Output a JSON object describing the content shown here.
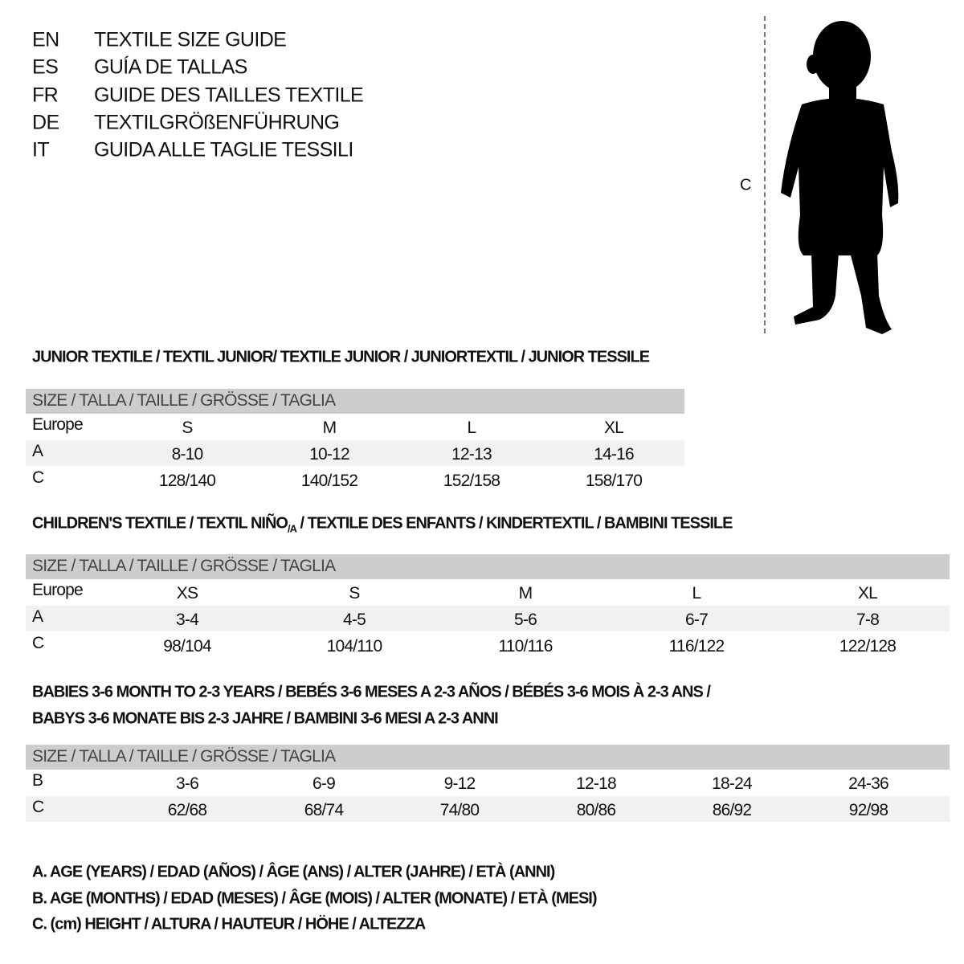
{
  "languages": [
    {
      "code": "EN",
      "title": "TEXTILE SIZE GUIDE"
    },
    {
      "code": "ES",
      "title": "GUÍA DE TALLAS"
    },
    {
      "code": "FR",
      "title": "GUIDE DES TAILLES TEXTILE"
    },
    {
      "code": "DE",
      "title": "TEXTILGRÖßENFÜHRUNG"
    },
    {
      "code": "IT",
      "title": "GUIDA ALLE TAGLIE TESSILI"
    }
  ],
  "figure": {
    "measure_label": "C",
    "icon": "child-silhouette-icon"
  },
  "junior": {
    "title": "JUNIOR TEXTILE / TEXTIL JUNIOR/ TEXTILE JUNIOR / JUNIORTEXTIL / JUNIOR TESSILE",
    "header": "SIZE / TALLA / TAILLE / GRÖSSE / TAGLIA",
    "rows": [
      {
        "label": "Europe",
        "values": [
          "S",
          "M",
          "L",
          "XL"
        ]
      },
      {
        "label": "A",
        "values": [
          "8-10",
          "10-12",
          "12-13",
          "14-16"
        ]
      },
      {
        "label": "C",
        "values": [
          "128/140",
          "140/152",
          "152/158",
          "158/170"
        ]
      }
    ]
  },
  "children": {
    "title_a": "CHILDREN'S TEXTILE / TEXTIL NIÑO",
    "title_sub": "/A",
    "title_b": " / TEXTILE DES ENFANTS / KINDERTEXTIL / BAMBINI TESSILE",
    "header": "SIZE / TALLA / TAILLE / GRÖSSE / TAGLIA",
    "rows": [
      {
        "label": "Europe",
        "values": [
          "XS",
          "S",
          "M",
          "L",
          "XL"
        ]
      },
      {
        "label": "A",
        "values": [
          "3-4",
          "4-5",
          "5-6",
          "6-7",
          "7-8"
        ]
      },
      {
        "label": "C",
        "values": [
          "98/104",
          "104/110",
          "110/116",
          "116/122",
          "122/128"
        ]
      }
    ]
  },
  "babies": {
    "title_line1": "BABIES 3-6 MONTH TO 2-3 YEARS / BEBÉS 3-6 MESES A 2-3 AÑOS / BÉBÉS 3-6 MOIS À 2-3 ANS /",
    "title_line2": "BABYS 3-6 MONATE BIS 2-3 JAHRE / BAMBINI 3-6 MESI A 2-3 ANNI",
    "header": "SIZE / TALLA / TAILLE / GRÖSSE / TAGLIA",
    "rows": [
      {
        "label": "B",
        "values": [
          "3-6",
          "6-9",
          "9-12",
          "12-18",
          "18-24",
          "24-36"
        ]
      },
      {
        "label": "C",
        "values": [
          "62/68",
          "68/74",
          "74/80",
          "80/86",
          "86/92",
          "92/98"
        ]
      }
    ]
  },
  "legend": [
    "A. AGE (YEARS) / EDAD (AÑOS) / ÂGE (ANS) / ALTER (JAHRE) / ETÀ (ANNI)",
    "B. AGE (MONTHS) / EDAD (MESES) / ÂGE (MOIS) / ALTER (MONATE) / ETÀ (MESI)",
    "C. (cm) HEIGHT / ALTURA / HAUTEUR / HÖHE / ALTEZZA"
  ]
}
